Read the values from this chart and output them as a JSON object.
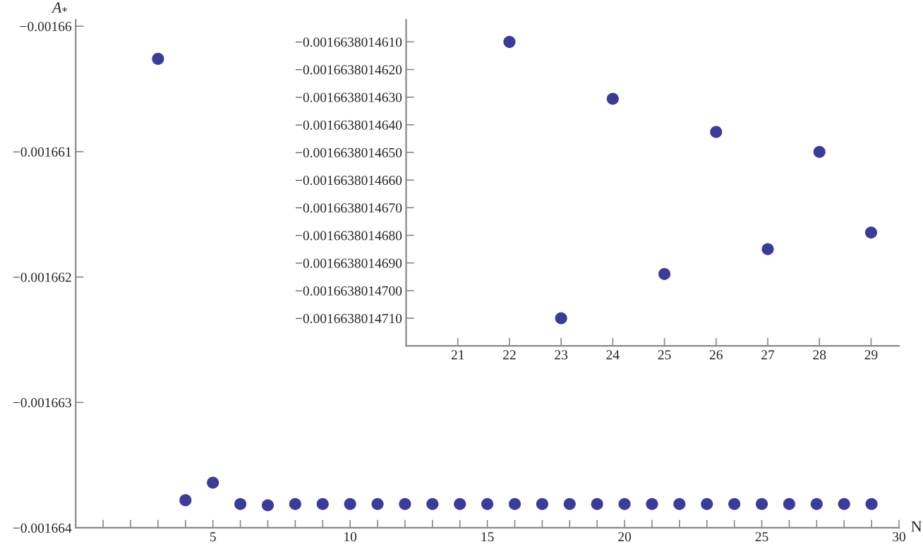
{
  "chart_data": [
    {
      "type": "scatter",
      "xlabel": "N",
      "ylabel": "A$_{*}$",
      "marker": "circle",
      "grid": false,
      "legend": false,
      "x": [
        3,
        4,
        5,
        6,
        7,
        8,
        9,
        10,
        11,
        12,
        13,
        14,
        15,
        16,
        17,
        18,
        19,
        20,
        21,
        22,
        23,
        24,
        25,
        26,
        27,
        28,
        29
      ],
      "series": [
        {
          "color": "#3b3b9c",
          "values": [
            -0.00166026,
            -0.00166378,
            -0.00166364,
            -0.00166381,
            -0.00166382,
            -0.00166381,
            -0.00166381,
            -0.00166381,
            -0.00166381,
            -0.00166381,
            -0.00166381,
            -0.00166381,
            -0.00166381,
            -0.00166381,
            -0.00166381,
            -0.00166381,
            -0.00166381,
            -0.00166381,
            -0.00166381,
            -0.00166381,
            -0.00166381,
            -0.00166381,
            -0.00166381,
            -0.00166381,
            -0.00166381,
            -0.00166381,
            -0.00166381
          ]
        }
      ],
      "xlim": [
        0,
        30
      ],
      "xticks": [
        {
          "value": 1,
          "label": null
        },
        {
          "value": 2,
          "label": null
        },
        {
          "value": 3,
          "label": null
        },
        {
          "value": 4,
          "label": null
        },
        5,
        {
          "value": 6,
          "label": null
        },
        {
          "value": 7,
          "label": null
        },
        {
          "value": 8,
          "label": null
        },
        {
          "value": 9,
          "label": null
        },
        10,
        {
          "value": 11,
          "label": null
        },
        {
          "value": 12,
          "label": null
        },
        {
          "value": 13,
          "label": null
        },
        {
          "value": 14,
          "label": null
        },
        15,
        {
          "value": 16,
          "label": null
        },
        {
          "value": 17,
          "label": null
        },
        {
          "value": 18,
          "label": null
        },
        {
          "value": 19,
          "label": null
        },
        20,
        {
          "value": 21,
          "label": null
        },
        {
          "value": 22,
          "label": null
        },
        {
          "value": 23,
          "label": null
        },
        {
          "value": 24,
          "label": null
        },
        25,
        {
          "value": 26,
          "label": null
        },
        {
          "value": 27,
          "label": null
        },
        {
          "value": 28,
          "label": null
        },
        {
          "value": 29,
          "label": null
        },
        30
      ],
      "ylim": [
        -0.001664,
        -0.00165995
      ],
      "yticks": [
        {
          "value": -0.001664,
          "label": "−0.001664"
        },
        {
          "value": -0.001663,
          "label": "−0.001663"
        },
        {
          "value": -0.001662,
          "label": "−0.001662"
        },
        {
          "value": -0.001661,
          "label": "−0.001661"
        },
        {
          "value": -0.00166,
          "label": "−0.00166"
        }
      ]
    },
    {
      "type": "scatter",
      "marker": "circle",
      "grid": false,
      "legend": false,
      "x": [
        22,
        23,
        24,
        25,
        26,
        27,
        28,
        29
      ],
      "series": [
        {
          "color": "#3b3b9c",
          "values": [
            -0.001663801461,
            -0.001663801471,
            -0.00166380146306,
            -0.0016638014694,
            -0.00166380146426,
            -0.0016638014685,
            -0.00166380146498,
            -0.0016638014679
          ]
        }
      ],
      "xlim": [
        20.0,
        29.54
      ],
      "xticks": [
        21,
        22,
        23,
        24,
        25,
        26,
        27,
        28,
        29
      ],
      "ylim": [
        -0.001663801472,
        -0.0016638014602
      ],
      "yticks": [
        {
          "value": -0.001663801461,
          "label": "−0.0016638014610"
        },
        {
          "value": -0.001663801462,
          "label": "−0.0016638014620"
        },
        {
          "value": -0.001663801463,
          "label": "−0.0016638014630"
        },
        {
          "value": -0.001663801464,
          "label": "−0.0016638014640"
        },
        {
          "value": -0.001663801465,
          "label": "−0.0016638014650"
        },
        {
          "value": -0.001663801466,
          "label": "−0.0016638014660"
        },
        {
          "value": -0.001663801467,
          "label": "−0.0016638014670"
        },
        {
          "value": -0.001663801468,
          "label": "−0.0016638014680"
        },
        {
          "value": -0.001663801469,
          "label": "−0.0016638014690"
        },
        {
          "value": -0.00166380147,
          "label": "−0.0016638014700"
        },
        {
          "value": -0.001663801471,
          "label": "−0.0016638014710"
        }
      ]
    }
  ]
}
